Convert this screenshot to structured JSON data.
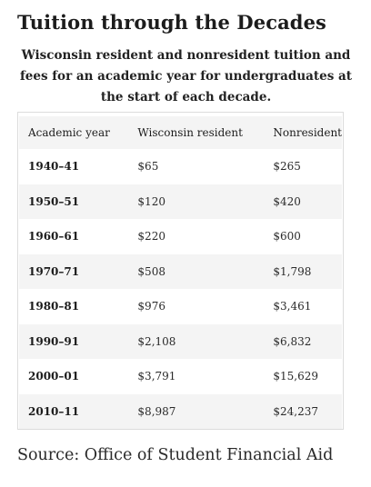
{
  "title": "Tuition through the Decades",
  "caption": "Wisconsin resident and nonresident tuition and fees for an academic year for undergraduates at the start of each decade.",
  "table": {
    "headers": {
      "year": "Academic year",
      "resident": "Wisconsin resident",
      "nonresident": "Nonresident"
    },
    "rows": [
      {
        "year": "1940–41",
        "resident": "$65",
        "nonresident": "$265"
      },
      {
        "year": "1950–51",
        "resident": "$120",
        "nonresident": "$420"
      },
      {
        "year": "1960–61",
        "resident": "$220",
        "nonresident": "$600"
      },
      {
        "year": "1970–71",
        "resident": "$508",
        "nonresident": "$1,798"
      },
      {
        "year": "1980–81",
        "resident": "$976",
        "nonresident": "$3,461"
      },
      {
        "year": "1990–91",
        "resident": "$2,108",
        "nonresident": "$6,832"
      },
      {
        "year": "2000–01",
        "resident": "$3,791",
        "nonresident": "$15,629"
      },
      {
        "year": "2010–11",
        "resident": "$8,987",
        "nonresident": "$24,237"
      }
    ]
  },
  "source": "Source: Office of Student Financial Aid"
}
